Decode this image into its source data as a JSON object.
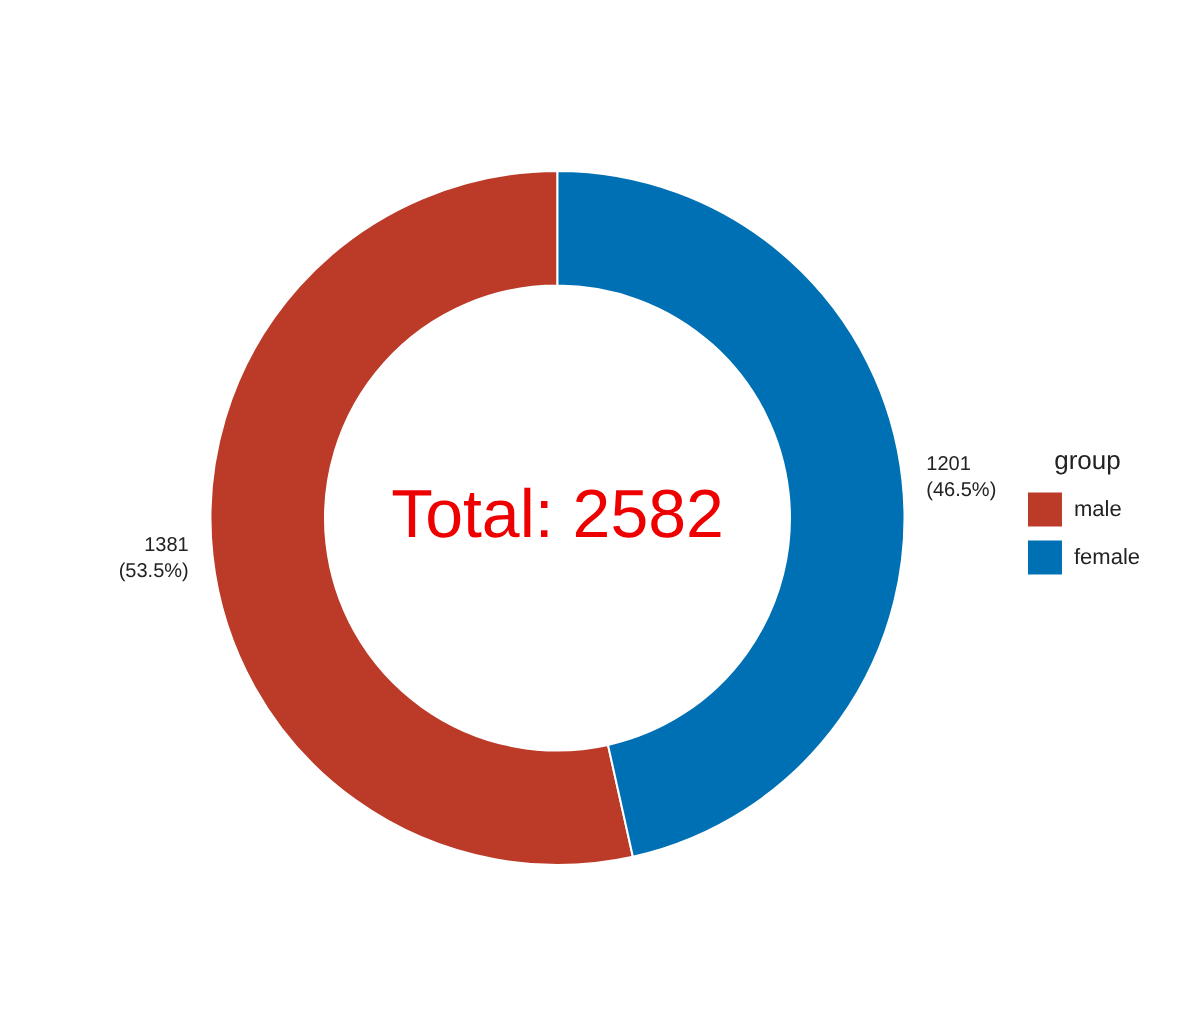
{
  "chart_data": {
    "type": "donut",
    "categories": [
      "male",
      "female"
    ],
    "values": [
      1381,
      1201
    ],
    "colors": [
      "#bb3b28",
      "#0070b4"
    ],
    "value_labels": [
      "1381\n(53.5%)",
      "1201\n(46.5%)"
    ],
    "legend": "right",
    "legend_title": "group",
    "annotations": [
      "Total: 2582"
    ]
  }
}
